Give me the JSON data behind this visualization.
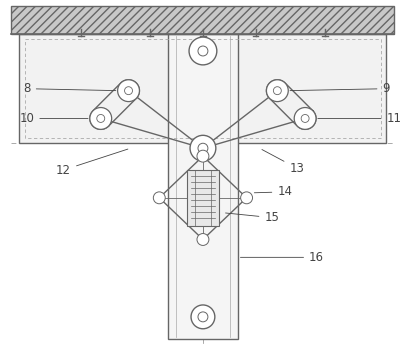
{
  "bg_color": "#ffffff",
  "line_color": "#aaaaaa",
  "dark_line": "#666666",
  "label_color": "#444444",
  "fig_width": 4.06,
  "fig_height": 3.5,
  "dpi": 100
}
